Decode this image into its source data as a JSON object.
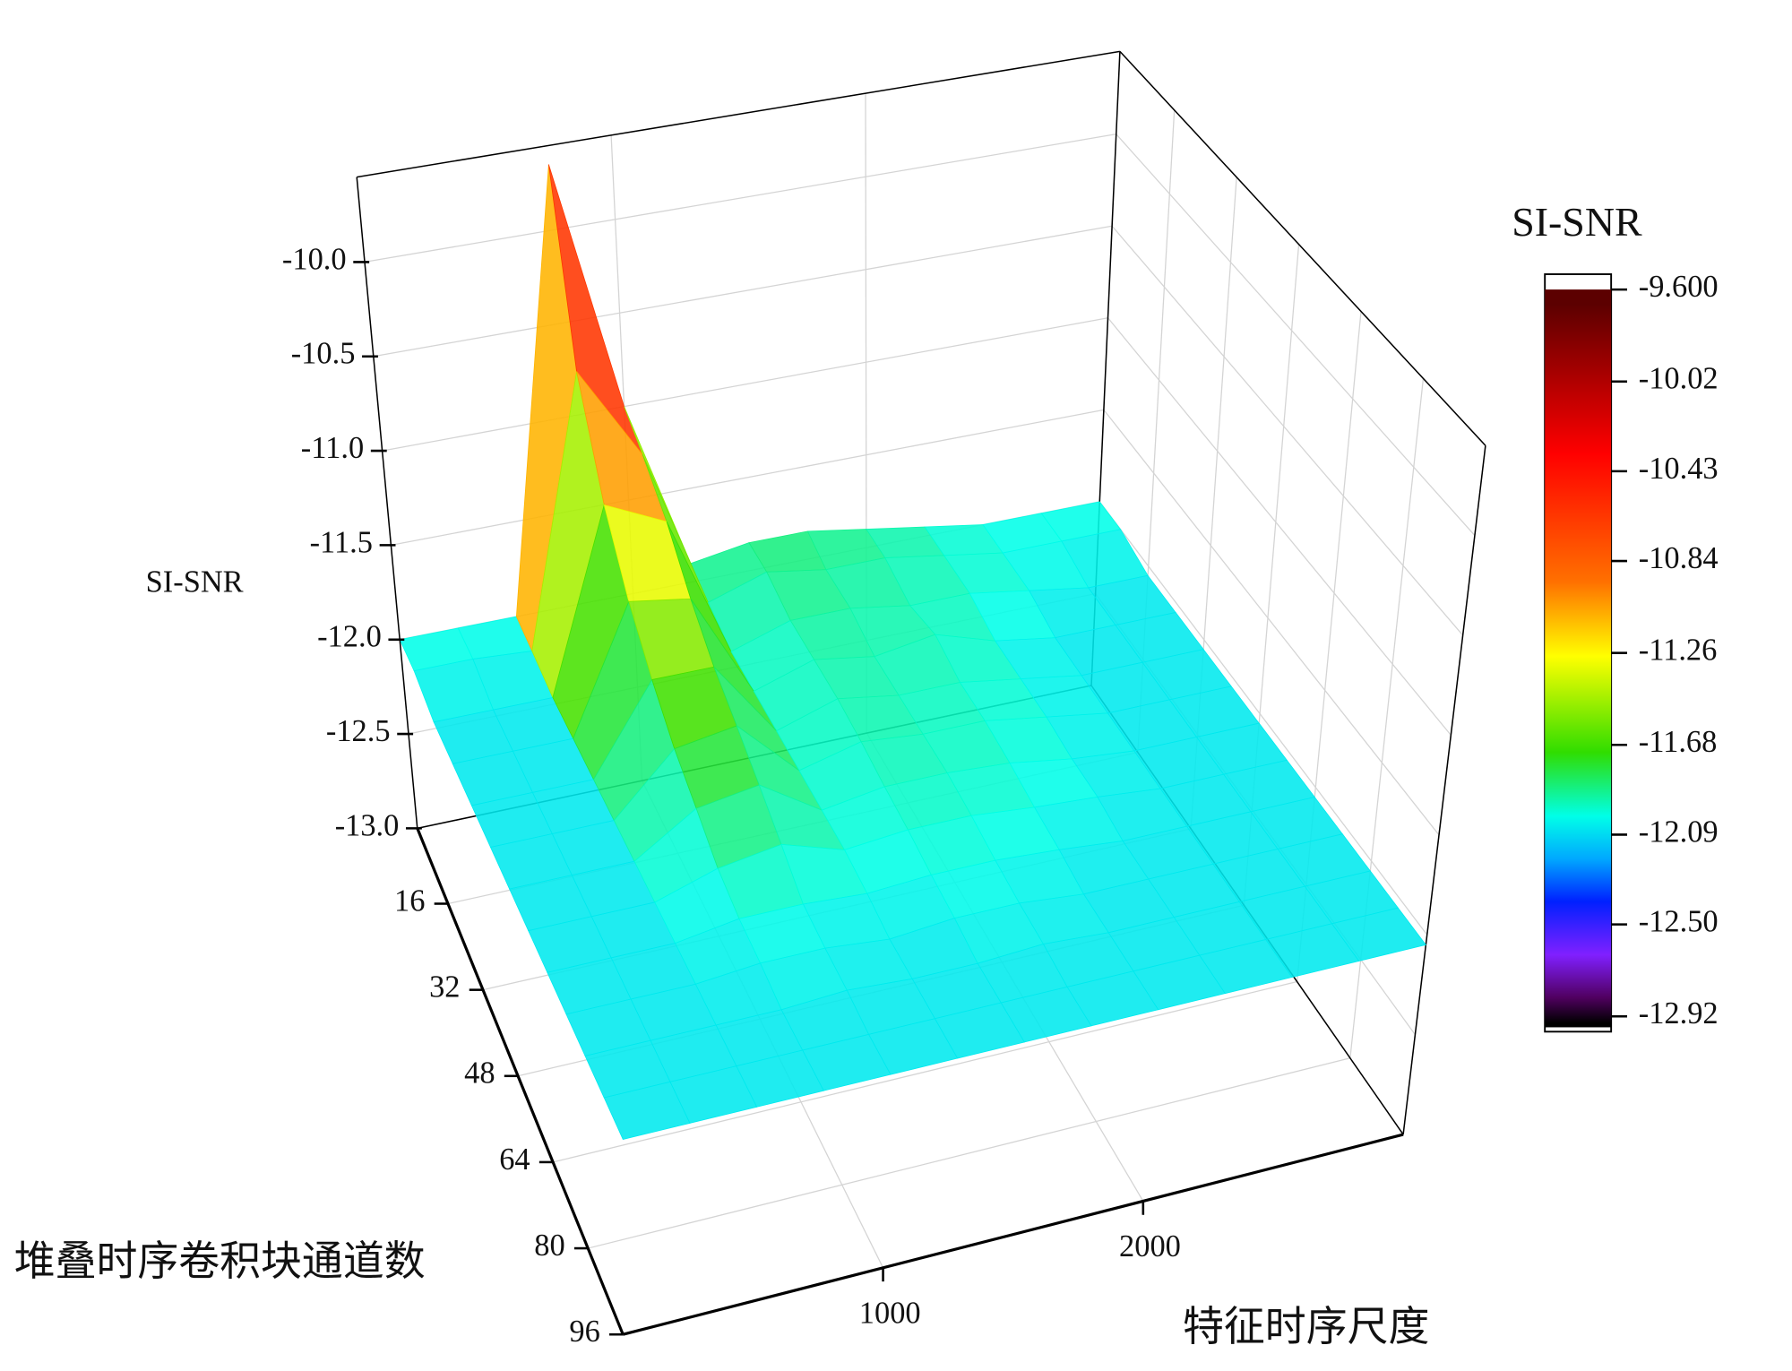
{
  "chart_data": {
    "type": "surface3d",
    "xlabel": "特征时序尺度",
    "ylabel": "堆叠时序卷积块通道数",
    "zlabel": "SI-SNR",
    "x": [
      0,
      250,
      500,
      750,
      1000,
      1250,
      1500,
      1750,
      2000,
      2250,
      2500,
      2750,
      3000
    ],
    "y": [
      2,
      8,
      16,
      24,
      32,
      40,
      48,
      56,
      64,
      72,
      80,
      88,
      96
    ],
    "z": [
      [
        -12.0,
        -12.0,
        -12.0,
        -9.65,
        -11.0,
        -11.9,
        -11.85,
        -11.85,
        -11.9,
        -11.95,
        -12.0,
        -12.0,
        -12.0
      ],
      [
        -12.0,
        -12.0,
        -12.02,
        -10.6,
        -11.1,
        -11.95,
        -11.85,
        -11.9,
        -11.9,
        -11.95,
        -12.0,
        -12.0,
        -12.0
      ],
      [
        -12.05,
        -12.05,
        -12.05,
        -11.1,
        -11.25,
        -12.0,
        -11.9,
        -11.9,
        -11.95,
        -11.95,
        -12.0,
        -12.05,
        -12.05
      ],
      [
        -12.05,
        -12.05,
        -12.05,
        -11.4,
        -11.45,
        -12.0,
        -11.9,
        -11.95,
        -11.9,
        -12.0,
        -12.05,
        -12.05,
        -12.05
      ],
      [
        -12.05,
        -12.05,
        -12.05,
        -11.6,
        -11.6,
        -12.0,
        -11.9,
        -11.95,
        -11.95,
        -12.0,
        -12.05,
        -12.05,
        -12.05
      ],
      [
        -12.05,
        -12.05,
        -12.05,
        -11.75,
        -11.7,
        -12.0,
        -11.92,
        -11.95,
        -11.95,
        -12.0,
        -12.05,
        -12.05,
        -12.05
      ],
      [
        -12.05,
        -12.05,
        -12.05,
        -11.85,
        -11.8,
        -12.0,
        -11.95,
        -11.95,
        -11.97,
        -12.02,
        -12.05,
        -12.05,
        -12.05
      ],
      [
        -12.05,
        -12.05,
        -12.05,
        -11.95,
        -11.9,
        -12.0,
        -11.97,
        -11.97,
        -12.0,
        -12.02,
        -12.05,
        -12.05,
        -12.05
      ],
      [
        -12.05,
        -12.05,
        -12.05,
        -12.0,
        -12.0,
        -12.02,
        -12.0,
        -12.0,
        -12.02,
        -12.05,
        -12.05,
        -12.05,
        -12.05
      ],
      [
        -12.05,
        -12.05,
        -12.05,
        -12.02,
        -12.02,
        -12.05,
        -12.02,
        -12.02,
        -12.05,
        -12.05,
        -12.05,
        -12.05,
        -12.05
      ],
      [
        -12.05,
        -12.05,
        -12.05,
        -12.05,
        -12.03,
        -12.05,
        -12.05,
        -12.03,
        -12.05,
        -12.05,
        -12.05,
        -12.05,
        -12.05
      ],
      [
        -12.05,
        -12.05,
        -12.05,
        -12.05,
        -12.05,
        -12.05,
        -12.05,
        -12.05,
        -12.05,
        -12.05,
        -12.05,
        -12.05,
        -12.05
      ],
      [
        -12.05,
        -12.05,
        -12.05,
        -12.05,
        -12.05,
        -12.05,
        -12.05,
        -12.05,
        -12.05,
        -12.05,
        -12.05,
        -12.05,
        -12.05
      ]
    ],
    "xlim": [
      0,
      3000
    ],
    "ylim": [
      2,
      96
    ],
    "zlim": [
      -13,
      -9.55
    ],
    "xticks": [
      1000,
      2000
    ],
    "yticks": [
      16,
      32,
      48,
      64,
      80,
      96
    ],
    "zticks": [
      {
        "value": -13,
        "label": "-13.0"
      },
      -12.5,
      {
        "value": -12,
        "label": "-12.0"
      },
      -11.5,
      {
        "value": -11,
        "label": "-11.0"
      },
      -10.5,
      {
        "value": -10,
        "label": "-10.0"
      }
    ],
    "grid": true,
    "colormap": [
      {
        "value": -9.6,
        "color": "#5c0000"
      },
      {
        "value": -10.3,
        "color": "#ff0000"
      },
      {
        "value": -10.9,
        "color": "#ff7000"
      },
      {
        "value": -11.25,
        "color": "#ffff00"
      },
      {
        "value": -11.7,
        "color": "#30dd00"
      },
      {
        "value": -12.0,
        "color": "#00ffe8"
      },
      {
        "value": -12.2,
        "color": "#00a8ff"
      },
      {
        "value": -12.4,
        "color": "#0020ff"
      },
      {
        "value": -12.65,
        "color": "#8020ff"
      },
      {
        "value": -12.85,
        "color": "#500060"
      },
      {
        "value": -12.97,
        "color": "#000000"
      }
    ],
    "colorbar": {
      "title": "SI-SNR",
      "lim": [
        -12.99,
        -9.53
      ],
      "ticks": [
        {
          "value": -9.6,
          "label": "-9.600"
        },
        -10.02,
        -10.43,
        -10.84,
        -11.26,
        -11.68,
        -12.09,
        {
          "value": -12.5,
          "label": "-12.50"
        },
        -12.92
      ]
    }
  }
}
